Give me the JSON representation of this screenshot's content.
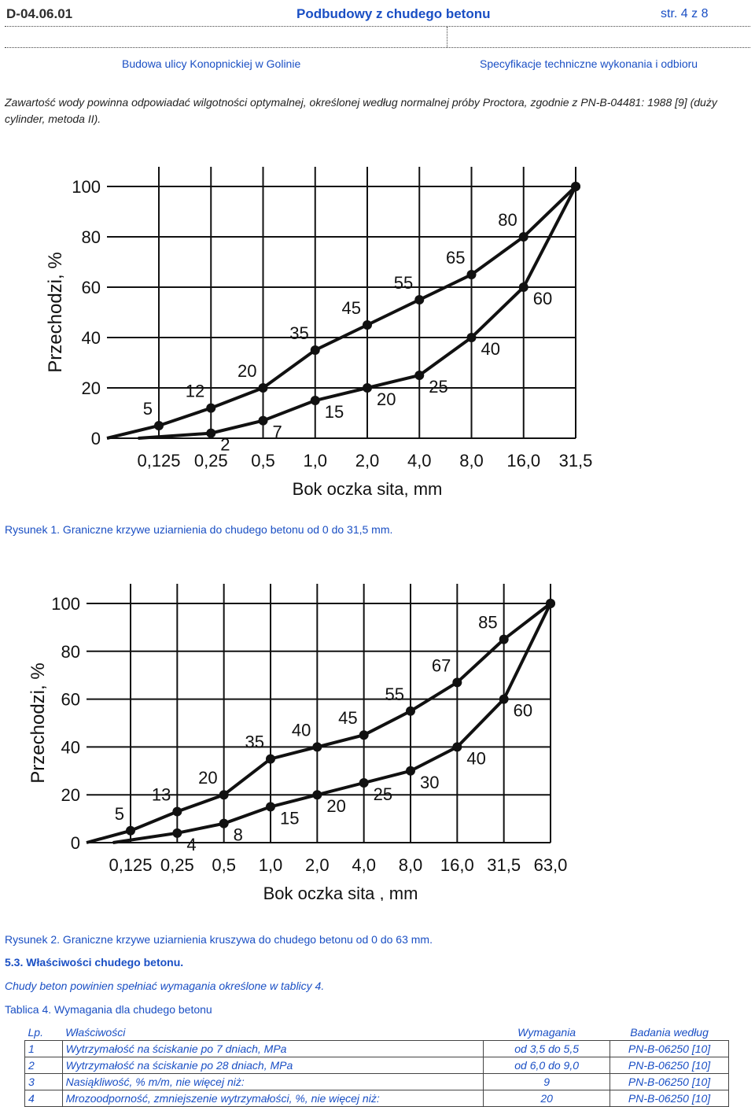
{
  "header": {
    "code": "D-04.06.01",
    "title": "Podbudowy z chudego betonu",
    "page": "str. 4 z 8",
    "road": "Budowa ulicy Konopnickiej w Golinie",
    "spec": "Specyfikacje techniczne wykonania i odbioru"
  },
  "intro_text": "Zawartość wody powinna odpowiadać wilgotności optymalnej, określonej według normalnej próby Proctora, zgodnie z PN-B-04481: 1988 [9] (duży cylinder, metoda II).",
  "figure1_caption": "Rysunek 1. Graniczne krzywe uziarnienia do chudego betonu od 0 do 31,5 mm.",
  "figure2_caption": "Rysunek 2. Graniczne krzywe uziarnienia kruszywa do chudego betonu od 0 do 63 mm.",
  "section_title": "5.3. Właściwości chudego betonu.",
  "section_text": "Chudy beton powinien spełniać wymagania określone w tablicy 4.",
  "table_caption": "Tablica 4. Wymagania dla chudego betonu",
  "table": {
    "headers": [
      "Lp.",
      "Właściwości",
      "Wymagania",
      "Badania według"
    ],
    "rows": [
      [
        "1",
        "Wytrzymałość na ściskanie po 7 dniach, MPa",
        "od 3,5 do 5,5",
        "PN-B-06250 [10]"
      ],
      [
        "2",
        "Wytrzymałość na ściskanie po 28 dniach, MPa",
        "od 6,0 do 9,0",
        "PN-B-06250 [10]"
      ],
      [
        "3",
        "Nasiąkliwość, % m/m, nie więcej niż:",
        "9",
        "PN-B-06250 [10]"
      ],
      [
        "4",
        "Mrozoodporność, zmniejszenie wytrzymałości, %, nie więcej niż:",
        "20",
        "PN-B-06250 [10]"
      ]
    ]
  },
  "chart_data": [
    {
      "type": "line",
      "title": "",
      "xlabel": "Bok oczka sita, mm",
      "ylabel": "Przechodzi, %",
      "categories": [
        "0,125",
        "0,25",
        "0,5",
        "1,0",
        "2,0",
        "4,0",
        "8,0",
        "16,0",
        "31,5"
      ],
      "y_ticks": [
        "0",
        "20",
        "40",
        "60",
        "80",
        "100"
      ],
      "ylim": [
        0,
        100
      ],
      "grid": true,
      "series": [
        {
          "values": [
            5,
            12,
            20,
            35,
            45,
            55,
            65,
            80,
            100
          ],
          "labels": [
            "5",
            "12",
            "20",
            "35",
            "45",
            "55",
            "65",
            "80",
            ""
          ]
        },
        {
          "values": [
            null,
            2,
            7,
            15,
            20,
            25,
            40,
            60,
            100
          ],
          "labels": [
            "",
            "2",
            "7",
            "15",
            "20",
            "25",
            "40",
            "60",
            ""
          ]
        }
      ]
    },
    {
      "type": "line",
      "title": "",
      "xlabel": "Bok oczka sita , mm",
      "ylabel": "Przechodzi, %",
      "categories": [
        "0,125",
        "0,25",
        "0,5",
        "1,0",
        "2,0",
        "4,0",
        "8,0",
        "16,0",
        "31,5",
        "63,0"
      ],
      "y_ticks": [
        "0",
        "20",
        "40",
        "60",
        "80",
        "100"
      ],
      "ylim": [
        0,
        100
      ],
      "grid": true,
      "series": [
        {
          "values": [
            5,
            13,
            20,
            35,
            40,
            45,
            55,
            67,
            85,
            100
          ],
          "labels": [
            "5",
            "13",
            "20",
            "35",
            "40",
            "45",
            "55",
            "67",
            "85",
            ""
          ]
        },
        {
          "values": [
            null,
            4,
            8,
            15,
            20,
            25,
            30,
            40,
            60,
            100
          ],
          "labels": [
            "",
            "4",
            "8",
            "15",
            "20",
            "25",
            "30",
            "40",
            "60",
            ""
          ]
        }
      ]
    }
  ]
}
